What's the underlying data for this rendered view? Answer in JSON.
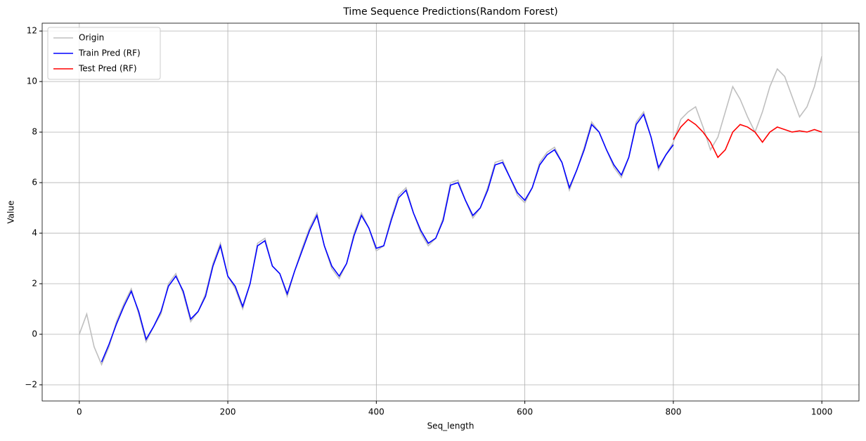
{
  "chart_data": {
    "type": "line",
    "title": "Time Sequence Predictions(Random Forest)",
    "xlabel": "Seq_length",
    "ylabel": "Value",
    "xlim": [
      -50,
      1050
    ],
    "ylim": [
      -2.64,
      12.31
    ],
    "xticks": [
      0,
      200,
      400,
      600,
      800,
      1000
    ],
    "yticks": [
      {
        "value": -2,
        "label": "−2"
      },
      0,
      2,
      4,
      6,
      8,
      10,
      12
    ],
    "grid": true,
    "legend": "upper left",
    "series": [
      {
        "name": "Origin",
        "color": "#bfbfbf",
        "x": [
          0,
          10,
          20,
          30,
          40,
          50,
          60,
          70,
          80,
          90,
          100,
          110,
          120,
          130,
          140,
          150,
          160,
          170,
          180,
          190,
          200,
          210,
          220,
          230,
          240,
          250,
          260,
          270,
          280,
          290,
          300,
          310,
          320,
          330,
          340,
          350,
          360,
          370,
          380,
          390,
          400,
          410,
          420,
          430,
          440,
          450,
          460,
          470,
          480,
          490,
          500,
          510,
          520,
          530,
          540,
          550,
          560,
          570,
          580,
          590,
          600,
          610,
          620,
          630,
          640,
          650,
          660,
          670,
          680,
          690,
          700,
          710,
          720,
          730,
          740,
          750,
          760,
          770,
          780,
          790,
          800,
          810,
          820,
          830,
          840,
          850,
          860,
          870,
          880,
          890,
          900,
          910,
          920,
          930,
          940,
          950,
          960,
          970,
          980,
          990,
          1000
        ],
        "values": [
          0,
          0.8,
          -0.5,
          -1.2,
          -0.5,
          0.5,
          1.2,
          1.8,
          0.8,
          -0.3,
          0.3,
          0.8,
          2.0,
          2.4,
          1.6,
          0.5,
          0.9,
          1.6,
          2.8,
          3.6,
          2.3,
          1.8,
          1.0,
          2.0,
          3.6,
          3.8,
          2.7,
          2.4,
          1.5,
          2.5,
          3.4,
          4.2,
          4.8,
          3.5,
          2.6,
          2.2,
          2.8,
          4.0,
          4.8,
          4.2,
          3.3,
          3.5,
          4.6,
          5.5,
          5.8,
          4.8,
          4.0,
          3.5,
          3.8,
          4.6,
          6.0,
          6.1,
          5.3,
          4.6,
          5.0,
          5.8,
          6.8,
          6.9,
          6.2,
          5.5,
          5.2,
          5.8,
          6.8,
          7.2,
          7.4,
          6.8,
          5.7,
          6.5,
          7.4,
          8.4,
          8.0,
          7.3,
          6.6,
          6.2,
          7.0,
          8.4,
          8.8,
          7.8,
          6.5,
          7.1,
          7.6,
          8.5,
          8.8,
          9.0,
          8.2,
          7.3,
          7.8,
          8.8,
          9.8,
          9.3,
          8.6,
          8.0,
          8.8,
          9.8,
          10.5,
          10.2,
          9.4,
          8.6,
          9.0,
          9.8,
          11.0
        ]
      },
      {
        "name": "Train Pred (RF)",
        "color": "#0000ff",
        "x": [
          30,
          40,
          50,
          60,
          70,
          80,
          90,
          100,
          110,
          120,
          130,
          140,
          150,
          160,
          170,
          180,
          190,
          200,
          210,
          220,
          230,
          240,
          250,
          260,
          270,
          280,
          290,
          300,
          310,
          320,
          330,
          340,
          350,
          360,
          370,
          380,
          390,
          400,
          410,
          420,
          430,
          440,
          450,
          460,
          470,
          480,
          490,
          500,
          510,
          520,
          530,
          540,
          550,
          560,
          570,
          580,
          590,
          600,
          610,
          620,
          630,
          640,
          650,
          660,
          670,
          680,
          690,
          700,
          710,
          720,
          730,
          740,
          750,
          760,
          770,
          780,
          790,
          800
        ],
        "values": [
          -1.1,
          -0.4,
          0.4,
          1.1,
          1.7,
          0.9,
          -0.2,
          0.3,
          0.9,
          1.9,
          2.3,
          1.7,
          0.6,
          0.9,
          1.5,
          2.7,
          3.5,
          2.3,
          1.9,
          1.1,
          2.0,
          3.5,
          3.7,
          2.7,
          2.4,
          1.6,
          2.5,
          3.3,
          4.1,
          4.7,
          3.5,
          2.7,
          2.3,
          2.8,
          3.9,
          4.7,
          4.2,
          3.4,
          3.5,
          4.5,
          5.4,
          5.7,
          4.8,
          4.1,
          3.6,
          3.8,
          4.5,
          5.9,
          6.0,
          5.3,
          4.7,
          5.0,
          5.7,
          6.7,
          6.8,
          6.2,
          5.6,
          5.3,
          5.8,
          6.7,
          7.1,
          7.3,
          6.8,
          5.8,
          6.5,
          7.3,
          8.3,
          8.0,
          7.3,
          6.7,
          6.3,
          7.0,
          8.3,
          8.7,
          7.8,
          6.6,
          7.1,
          7.5
        ]
      },
      {
        "name": "Test Pred (RF)",
        "color": "#ff0000",
        "x": [
          800,
          810,
          820,
          830,
          840,
          850,
          860,
          870,
          880,
          890,
          900,
          910,
          920,
          930,
          940,
          950,
          960,
          970,
          980,
          990,
          1000
        ],
        "values": [
          7.7,
          8.2,
          8.5,
          8.3,
          8.0,
          7.6,
          7.0,
          7.3,
          8.0,
          8.3,
          8.2,
          8.0,
          7.6,
          8.0,
          8.2,
          8.1,
          8.0,
          8.05,
          8.0,
          8.1,
          8.0
        ]
      }
    ]
  }
}
